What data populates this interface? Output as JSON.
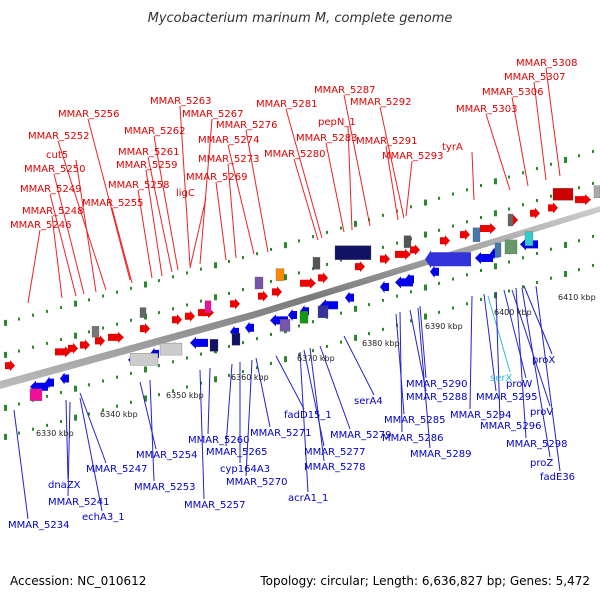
{
  "title": "Mycobacterium marinum M, complete genome",
  "footer": {
    "accession": "Accession: NC_010612",
    "summary": "Topology: circular; Length: 6,636,827 bp; Genes: 5,472"
  },
  "scale_labels": [
    "6330 kbp",
    "6340 kbp",
    "6350 kbp",
    "6360 kbp",
    "6370 kbp",
    "6380 kbp",
    "6390 kbp",
    "6400 kbp",
    "6410 kbp"
  ],
  "forward_genes": [
    "MMAR_5246",
    "MMAR_5248",
    "MMAR_5249",
    "MMAR_5250",
    "cut5",
    "MMAR_5252",
    "MMAR_5255",
    "MMAR_5256",
    "MMAR_5258",
    "MMAR_5259",
    "MMAR_5261",
    "MMAR_5262",
    "MMAR_5263",
    "MMAR_5267",
    "ligC",
    "MMAR_5269",
    "MMAR_5273",
    "MMAR_5274",
    "MMAR_5276",
    "MMAR_5280",
    "MMAR_5281",
    "MMAR_5283",
    "pepN_1",
    "MMAR_5287",
    "MMAR_5291",
    "MMAR_5292",
    "MMAR_5293",
    "tyrA",
    "MMAR_5303",
    "MMAR_5306",
    "MMAR_5307",
    "MMAR_5308"
  ],
  "reverse_genes": [
    "MMAR_5234",
    "dnaZX",
    "MMAR_5241",
    "echA3_1",
    "MMAR_5247",
    "MMAR_5253",
    "MMAR_5254",
    "MMAR_5257",
    "MMAR_5260",
    "MMAR_5265",
    "cyp164A3",
    "MMAR_5270",
    "MMAR_5271",
    "acrA1_1",
    "fadD15_1",
    "MMAR_5277",
    "MMAR_5278",
    "MMAR_5279",
    "serA4",
    "MMAR_5285",
    "MMAR_5286",
    "MMAR_5288",
    "MMAR_5289",
    "MMAR_5290",
    "serX",
    "MMAR_5294",
    "MMAR_5295",
    "MMAR_5296",
    "proW",
    "proV",
    "MMAR_5298",
    "proX",
    "proZ",
    "fadE36"
  ],
  "colors": {
    "forward_label": "#e00000",
    "reverse_label": "#0000cc",
    "trna_label": "#33bbdd",
    "forward_gene": "#ee0000",
    "reverse_gene": "#0000ee",
    "backbone": "#888888",
    "tick": "#2a8a2a"
  }
}
